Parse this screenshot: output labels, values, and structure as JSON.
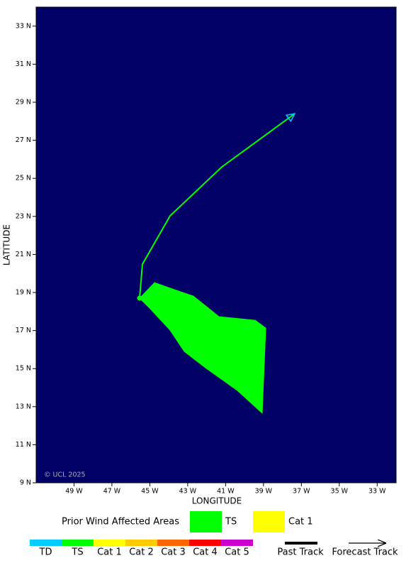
{
  "map": {
    "copyright": "© UCL 2025",
    "x_label": "LONGITUDE",
    "y_label": "LATITUDE",
    "xlim": [
      -51,
      -32
    ],
    "ylim": [
      9,
      34
    ],
    "background": "#000066",
    "xticks": [
      {
        "value": -49,
        "label": "49 W"
      },
      {
        "value": -47,
        "label": "47 W"
      },
      {
        "value": -45,
        "label": "45 W"
      },
      {
        "value": -43,
        "label": "43 W"
      },
      {
        "value": -41,
        "label": "41 W"
      },
      {
        "value": -39,
        "label": "39 W"
      },
      {
        "value": -37,
        "label": "37 W"
      },
      {
        "value": -35,
        "label": "35 W"
      },
      {
        "value": -33,
        "label": "33 W"
      }
    ],
    "yticks": [
      {
        "value": 9,
        "label": "9 N"
      },
      {
        "value": 11,
        "label": "11 N"
      },
      {
        "value": 13,
        "label": "13 N"
      },
      {
        "value": 15,
        "label": "15 N"
      },
      {
        "value": 17,
        "label": "17 N"
      },
      {
        "value": 19,
        "label": "19 N"
      },
      {
        "value": 21,
        "label": "21 N"
      },
      {
        "value": 23,
        "label": "23 N"
      },
      {
        "value": 25,
        "label": "25 N"
      },
      {
        "value": 27,
        "label": "27 N"
      },
      {
        "value": 29,
        "label": "29 N"
      },
      {
        "value": 31,
        "label": "31 N"
      },
      {
        "value": 33,
        "label": "33 N"
      }
    ],
    "wind_area": {
      "name": "TS",
      "color": "#00ff00",
      "lon": [
        -45.54,
        -44.75,
        -43.82,
        -42.7,
        -41.35,
        -39.44,
        -38.88,
        -39.07,
        -40.38,
        -42.06,
        -43.18,
        -43.93,
        -45.05
      ],
      "lat": [
        18.7,
        19.52,
        19.19,
        18.81,
        17.73,
        17.54,
        17.13,
        12.66,
        13.85,
        15.04,
        15.9,
        17.02,
        18.22
      ]
    },
    "track": {
      "color": "#00ff00",
      "arrow_color": "#00ccff",
      "lon": [
        -45.54,
        -45.39,
        -43.93,
        -41.2,
        -37.35
      ],
      "lat": [
        18.7,
        20.49,
        23.03,
        25.6,
        28.4
      ]
    }
  },
  "legend": {
    "areas_title": "Prior Wind Affected Areas",
    "areas": [
      {
        "name": "TS",
        "color": "#00ff00"
      },
      {
        "name": "Cat 1",
        "color": "#ffff00"
      }
    ],
    "scale": [
      {
        "name": "TD",
        "color": "#00ccff"
      },
      {
        "name": "TS",
        "color": "#00ff00"
      },
      {
        "name": "Cat 1",
        "color": "#ffff00"
      },
      {
        "name": "Cat 2",
        "color": "#ffcc00"
      },
      {
        "name": "Cat 3",
        "color": "#ff6600"
      },
      {
        "name": "Cat 4",
        "color": "#ff0000"
      },
      {
        "name": "Cat 5",
        "color": "#cc00cc"
      }
    ],
    "past_track": "Past Track",
    "forecast_track": "Forecast Track"
  }
}
